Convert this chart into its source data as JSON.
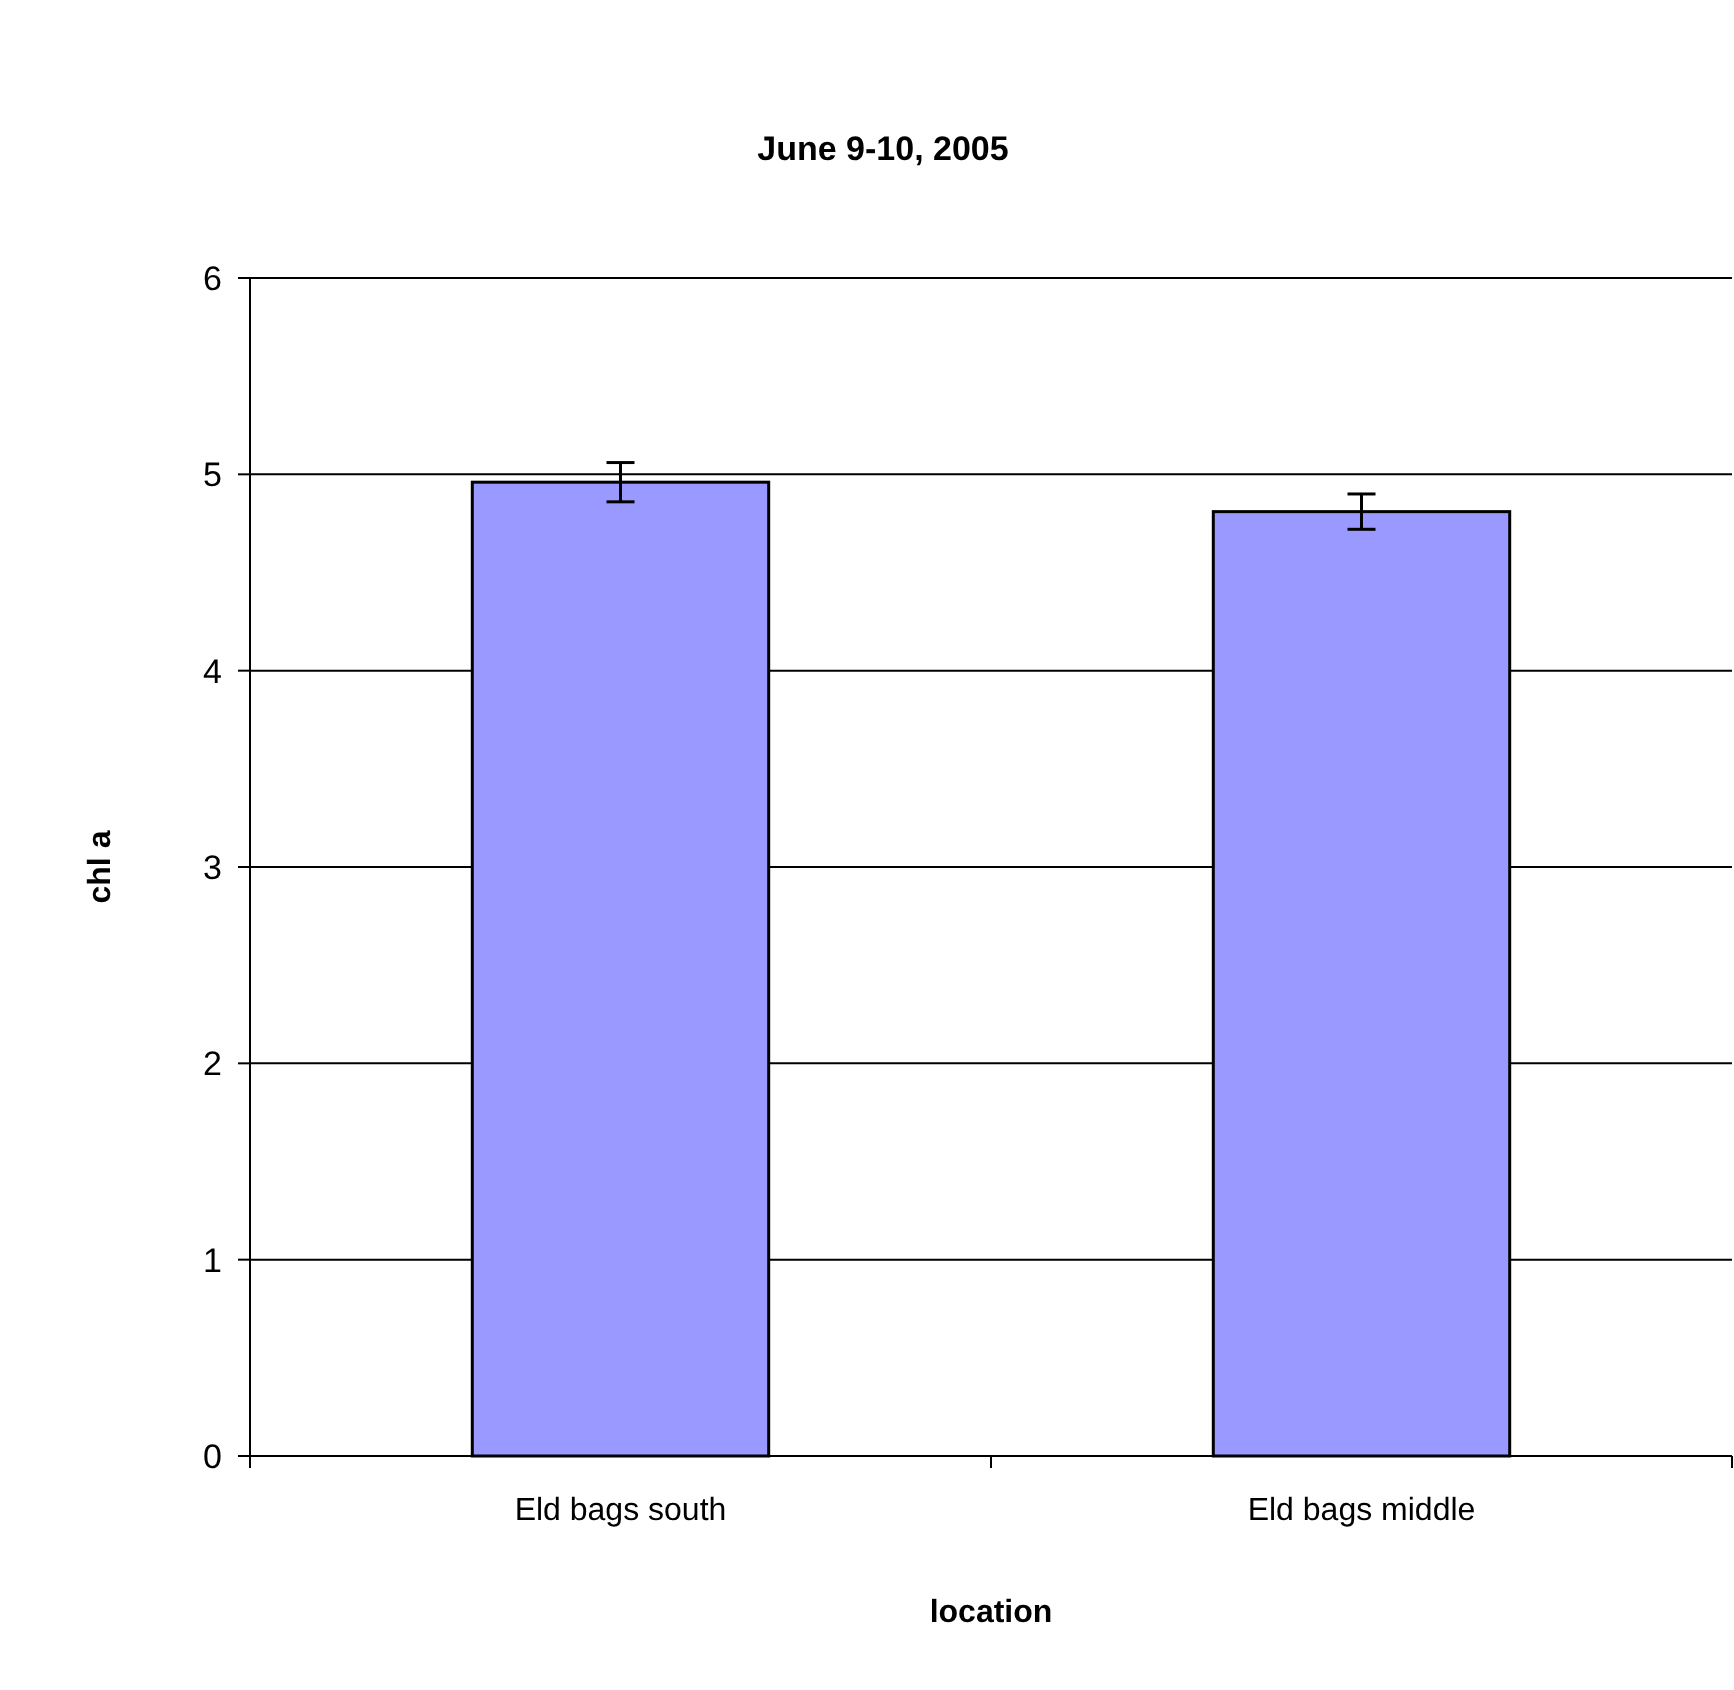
{
  "chart_data": {
    "type": "bar",
    "title": "June 9-10, 2005",
    "xlabel": "location",
    "ylabel": "chl a",
    "categories": [
      "Eld bags south",
      "Eld bags middle"
    ],
    "values": [
      4.96,
      4.81
    ],
    "errors": [
      0.1,
      0.09
    ],
    "color": "#9999ff",
    "ylim": [
      0,
      6
    ],
    "yticks": [
      0,
      1,
      2,
      3,
      4,
      5,
      6
    ],
    "grid": "y"
  }
}
